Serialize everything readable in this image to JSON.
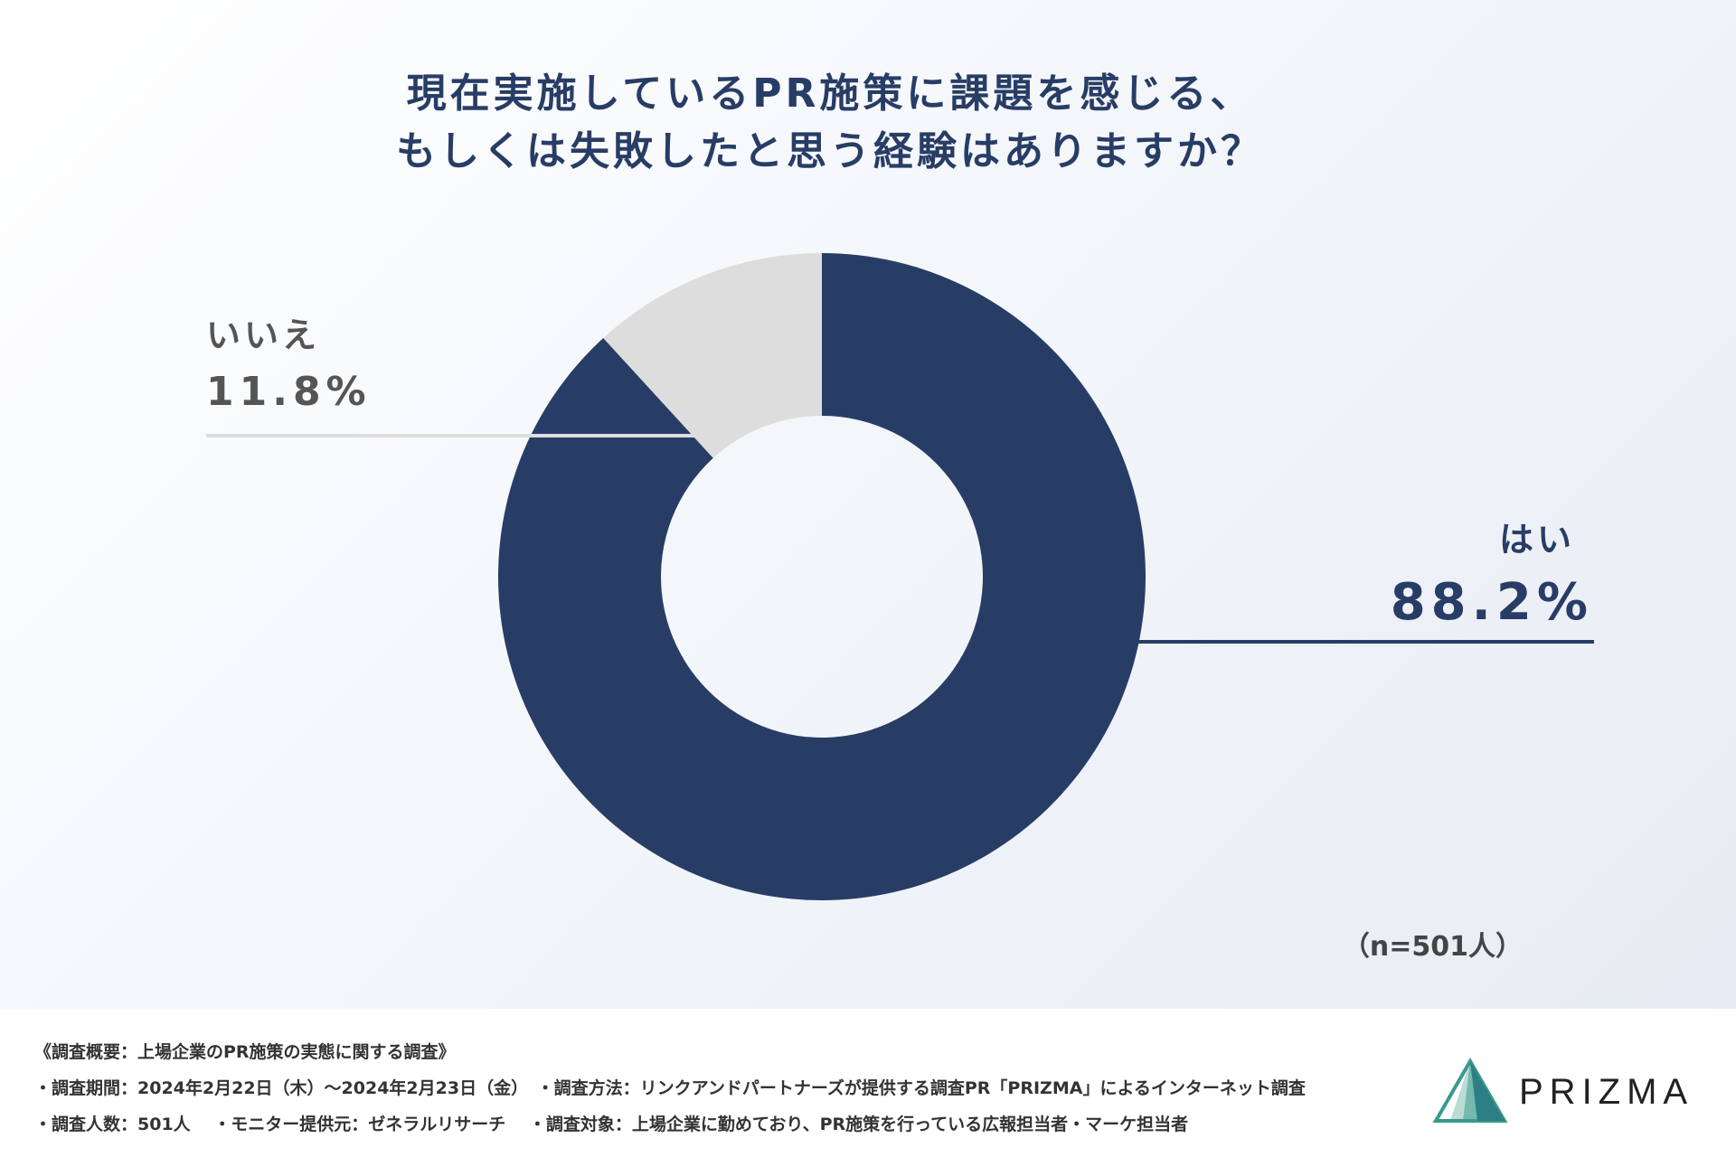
{
  "title_lines": [
    "現在実施しているPR施策に課題を感じる、",
    "もしくは失敗したと思う経験はありますか？"
  ],
  "chart_data": {
    "type": "pie",
    "donut": true,
    "slices": [
      {
        "label": "はい",
        "value": 88.2,
        "value_label": "88.2%",
        "color": "#283d66"
      },
      {
        "label": "いいえ",
        "value": 11.8,
        "value_label": "11.8%",
        "color": "#dddddd"
      }
    ],
    "sample_note": "（n=501人）"
  },
  "footer": {
    "lines": [
      "《調査概要：上場企業のPR施策の実態に関する調査》",
      "・調査期間：2024年2月22日（木）～2024年2月23日（金）　・調査方法：リンクアンドパートナーズが提供する調査PR「PRIZMA」によるインターネット調査",
      "・調査人数：501人　 ・モニター提供元：ゼネラルリサーチ　 ・調査対象：上場企業に勤めており、PR施策を行っている広報担当者・マーケ担当者"
    ],
    "logo_text": "PRIZMA",
    "logo_color": "#3a9a8c"
  }
}
